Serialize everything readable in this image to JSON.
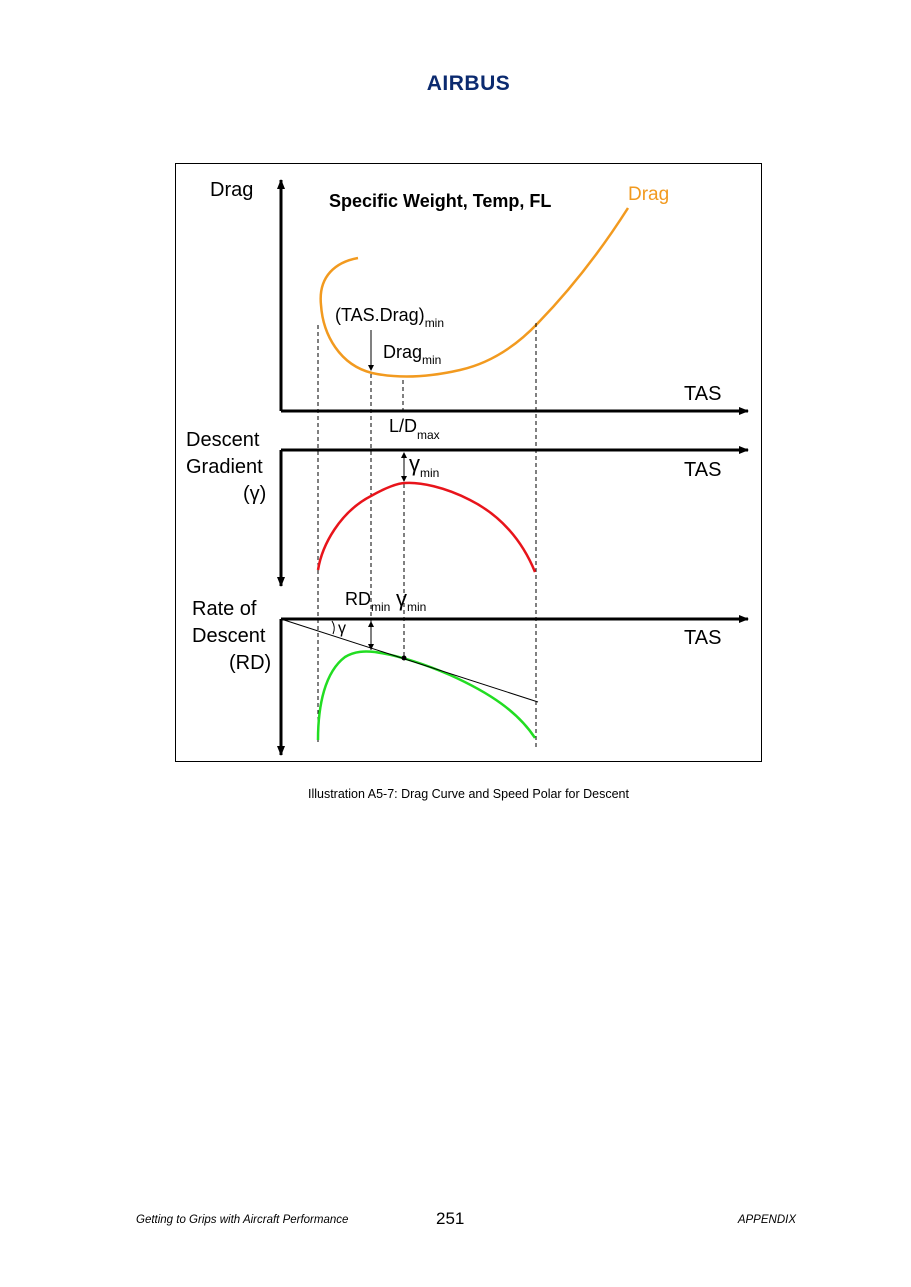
{
  "header": {
    "logo_text": "AIRBUS"
  },
  "figure": {
    "conditions_label": "Specific Weight, Temp, FL",
    "drag_panel": {
      "y_axis_label": "Drag",
      "x_axis_label": "TAS",
      "curve_label": "Drag",
      "curve_color": "#f29a1f",
      "tas_drag_min_main": "(TAS.Drag)",
      "tas_drag_min_sub": "min",
      "drag_min_main": "Drag",
      "drag_min_sub": "min",
      "ld_max_main": "L/D",
      "ld_max_sub": "max"
    },
    "gradient_panel": {
      "y_axis_label_line1": "Descent",
      "y_axis_label_line2": "Gradient",
      "y_axis_label_line3": "(γ)",
      "x_axis_label": "TAS",
      "curve_color": "#e8141b",
      "gamma_min_main": "γ",
      "gamma_min_sub": "min"
    },
    "rod_panel": {
      "y_axis_label_line1": "Rate of",
      "y_axis_label_line2": "Descent",
      "y_axis_label_line3": "(RD)",
      "x_axis_label": "TAS",
      "curve_color": "#22dd22",
      "rd_min_main": "RD",
      "rd_min_sub": "min",
      "gamma_min_main": "γ",
      "gamma_min_sub": "min",
      "gamma_label": "γ"
    }
  },
  "caption": "Illustration A5-7: Drag Curve and Speed Polar for Descent",
  "footer": {
    "left": "Getting to Grips with Aircraft Performance",
    "page_number": "251",
    "right": "APPENDIX"
  }
}
